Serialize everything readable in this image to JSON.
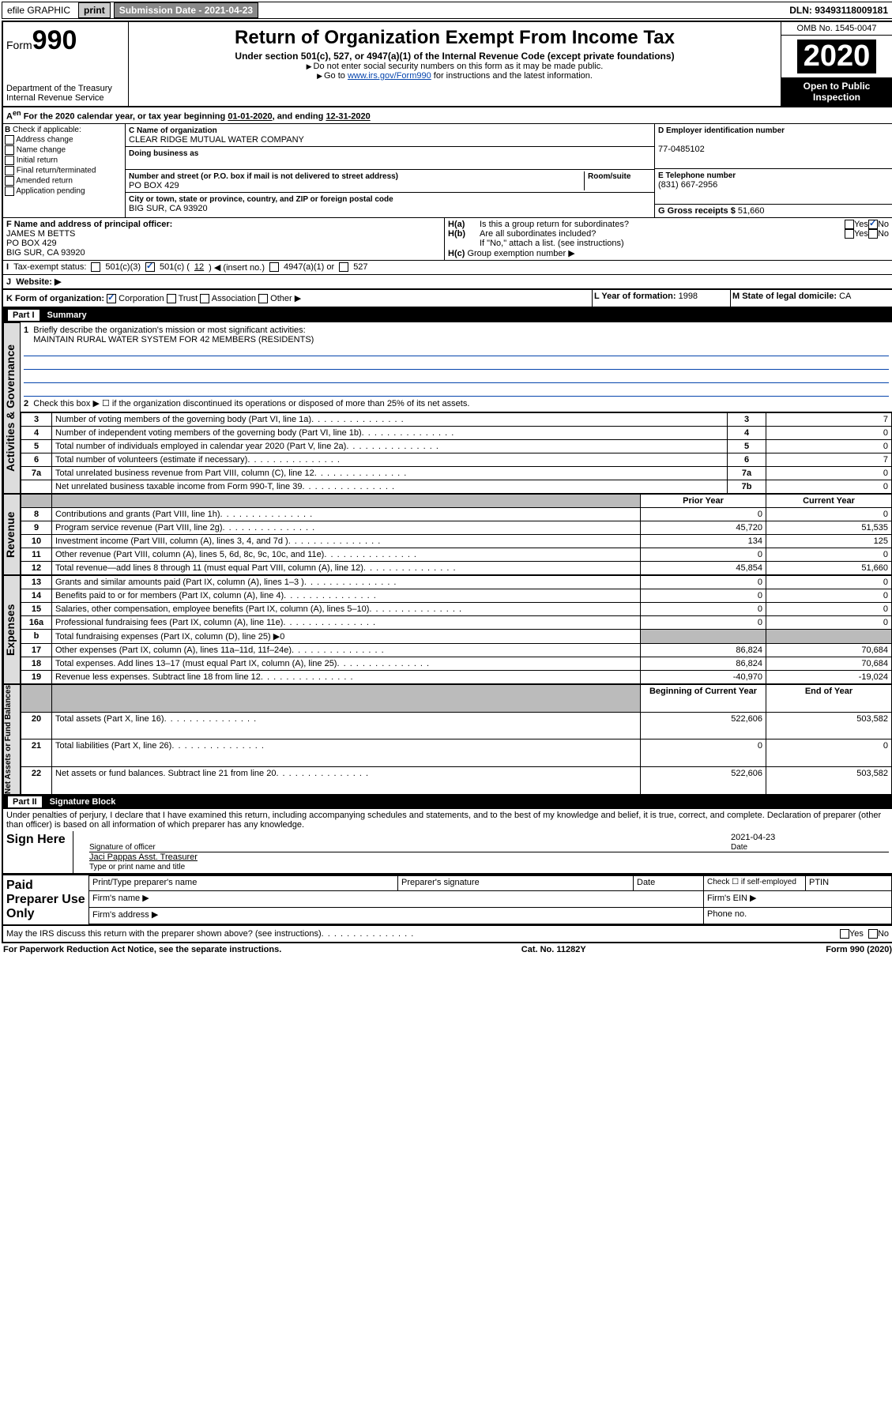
{
  "topbar": {
    "efile": "efile GRAPHIC",
    "print": "print",
    "subdate_lbl": "Submission Date - 2021-04-23",
    "dln": "DLN: 93493118009181"
  },
  "header": {
    "form": "990",
    "form_prefix": "Form",
    "title": "Return of Organization Exempt From Income Tax",
    "subtitle": "Under section 501(c), 527, or 4947(a)(1) of the Internal Revenue Code (except private foundations)",
    "note1": "Do not enter social security numbers on this form as it may be made public.",
    "note2_pre": "Go to ",
    "note2_link": "www.irs.gov/Form990",
    "note2_post": " for instructions and the latest information.",
    "dept": "Department of the Treasury",
    "irs": "Internal Revenue Service",
    "omb": "OMB No. 1545-0047",
    "year": "2020",
    "open": "Open to Public Inspection"
  },
  "period": {
    "text_a": "For the 2020 calendar year, or tax year beginning ",
    "begin": "01-01-2020",
    "text_b": ", and ending ",
    "end": "12-31-2020"
  },
  "sectionB": {
    "heading": "Check if applicable:",
    "opts": [
      "Address change",
      "Name change",
      "Initial return",
      "Final return/terminated",
      "Amended return",
      "Application pending"
    ]
  },
  "sectionC": {
    "name_lbl": "C Name of organization",
    "name": "CLEAR RIDGE MUTUAL WATER COMPANY",
    "dba_lbl": "Doing business as",
    "addr_lbl": "Number and street (or P.O. box if mail is not delivered to street address)",
    "room_lbl": "Room/suite",
    "addr": "PO BOX 429",
    "city_lbl": "City or town, state or province, country, and ZIP or foreign postal code",
    "city": "BIG SUR, CA  93920"
  },
  "sectionD": {
    "lbl": "D Employer identification number",
    "val": "77-0485102"
  },
  "sectionE": {
    "lbl": "E Telephone number",
    "val": "(831) 667-2956"
  },
  "sectionG": {
    "lbl": "G Gross receipts $",
    "val": "51,660"
  },
  "sectionF": {
    "lbl": "F  Name and address of principal officer:",
    "line1": "JAMES M BETTS",
    "line2": "PO BOX 429",
    "line3": "BIG SUR, CA  93920"
  },
  "sectionH": {
    "a": "Is this a group return for subordinates?",
    "b": "Are all subordinates included?",
    "bnote": "If \"No,\" attach a list. (see instructions)",
    "c": "Group exemption number"
  },
  "tax_status": {
    "lbl": "Tax-exempt status:",
    "opt1": "501(c)(3)",
    "opt2a": "501(c) (",
    "opt2b": "12",
    "opt2c": ") ◀ (insert no.)",
    "opt3": "4947(a)(1) or",
    "opt4": "527"
  },
  "sectionJ": {
    "lbl": "Website: ▶"
  },
  "sectionK": {
    "lbl": "K Form of organization:",
    "opts": [
      "Corporation",
      "Trust",
      "Association",
      "Other ▶"
    ]
  },
  "sectionL": {
    "lbl": "L Year of formation:",
    "val": "1998"
  },
  "sectionM": {
    "lbl": "M State of legal domicile:",
    "val": "CA"
  },
  "part1": {
    "hd": "Part I",
    "ttl": "Summary"
  },
  "summary": {
    "line1_lbl": "Briefly describe the organization's mission or most significant activities:",
    "line1_val": "MAINTAIN RURAL WATER SYSTEM FOR 42 MEMBERS (RESIDENTS)",
    "line2": "Check this box ▶ ☐  if the organization discontinued its operations or disposed of more than 25% of its net assets.",
    "lines": [
      {
        "n": "3",
        "t": "Number of voting members of the governing body (Part VI, line 1a)",
        "box": "3",
        "v": "7"
      },
      {
        "n": "4",
        "t": "Number of independent voting members of the governing body (Part VI, line 1b)",
        "box": "4",
        "v": "0"
      },
      {
        "n": "5",
        "t": "Total number of individuals employed in calendar year 2020 (Part V, line 2a)",
        "box": "5",
        "v": "0"
      },
      {
        "n": "6",
        "t": "Total number of volunteers (estimate if necessary)",
        "box": "6",
        "v": "7"
      },
      {
        "n": "7a",
        "t": "Total unrelated business revenue from Part VIII, column (C), line 12",
        "box": "7a",
        "v": "0"
      },
      {
        "n": "",
        "t": "Net unrelated business taxable income from Form 990-T, line 39",
        "box": "7b",
        "v": "0"
      }
    ],
    "col_prior": "Prior Year",
    "col_curr": "Current Year",
    "revenue": [
      {
        "n": "8",
        "t": "Contributions and grants (Part VIII, line 1h)",
        "p": "0",
        "c": "0"
      },
      {
        "n": "9",
        "t": "Program service revenue (Part VIII, line 2g)",
        "p": "45,720",
        "c": "51,535"
      },
      {
        "n": "10",
        "t": "Investment income (Part VIII, column (A), lines 3, 4, and 7d )",
        "p": "134",
        "c": "125"
      },
      {
        "n": "11",
        "t": "Other revenue (Part VIII, column (A), lines 5, 6d, 8c, 9c, 10c, and 11e)",
        "p": "0",
        "c": "0"
      },
      {
        "n": "12",
        "t": "Total revenue—add lines 8 through 11 (must equal Part VIII, column (A), line 12)",
        "p": "45,854",
        "c": "51,660"
      }
    ],
    "expenses": [
      {
        "n": "13",
        "t": "Grants and similar amounts paid (Part IX, column (A), lines 1–3 )",
        "p": "0",
        "c": "0"
      },
      {
        "n": "14",
        "t": "Benefits paid to or for members (Part IX, column (A), line 4)",
        "p": "0",
        "c": "0"
      },
      {
        "n": "15",
        "t": "Salaries, other compensation, employee benefits (Part IX, column (A), lines 5–10)",
        "p": "0",
        "c": "0"
      },
      {
        "n": "16a",
        "t": "Professional fundraising fees (Part IX, column (A), line 11e)",
        "p": "0",
        "c": "0"
      },
      {
        "n": "b",
        "t": "Total fundraising expenses (Part IX, column (D), line 25) ▶0",
        "p": "",
        "c": ""
      },
      {
        "n": "17",
        "t": "Other expenses (Part IX, column (A), lines 11a–11d, 11f–24e)",
        "p": "86,824",
        "c": "70,684"
      },
      {
        "n": "18",
        "t": "Total expenses. Add lines 13–17 (must equal Part IX, column (A), line 25)",
        "p": "86,824",
        "c": "70,684"
      },
      {
        "n": "19",
        "t": "Revenue less expenses. Subtract line 18 from line 12",
        "p": "-40,970",
        "c": "-19,024"
      }
    ],
    "col_begin": "Beginning of Current Year",
    "col_end": "End of Year",
    "netassets": [
      {
        "n": "20",
        "t": "Total assets (Part X, line 16)",
        "p": "522,606",
        "c": "503,582"
      },
      {
        "n": "21",
        "t": "Total liabilities (Part X, line 26)",
        "p": "0",
        "c": "0"
      },
      {
        "n": "22",
        "t": "Net assets or fund balances. Subtract line 21 from line 20",
        "p": "522,606",
        "c": "503,582"
      }
    ],
    "side_ag": "Activities & Governance",
    "side_rev": "Revenue",
    "side_exp": "Expenses",
    "side_net": "Net Assets or Fund Balances"
  },
  "part2": {
    "hd": "Part II",
    "ttl": "Signature Block"
  },
  "perjury": "Under penalties of perjury, I declare that I have examined this return, including accompanying schedules and statements, and to the best of my knowledge and belief, it is true, correct, and complete. Declaration of preparer (other than officer) is based on all information of which preparer has any knowledge.",
  "sign": {
    "here": "Sign Here",
    "sig_lbl": "Signature of officer",
    "date_lbl": "Date",
    "date": "2021-04-23",
    "name": "Jaci Pappas  Asst. Treasurer",
    "name_lbl": "Type or print name and title"
  },
  "paid": {
    "lbl": "Paid Preparer Use Only",
    "c1": "Print/Type preparer's name",
    "c2": "Preparer's signature",
    "c3": "Date",
    "c4a": "Check ☐ if self-employed",
    "c4": "PTIN",
    "fn": "Firm's name  ▶",
    "fe": "Firm's EIN ▶",
    "fa": "Firm's address ▶",
    "ph": "Phone no."
  },
  "discuss": "May the IRS discuss this return with the preparer shown above? (see instructions)",
  "footer": {
    "l": "For Paperwork Reduction Act Notice, see the separate instructions.",
    "m": "Cat. No. 11282Y",
    "r": "Form 990 (2020)"
  }
}
